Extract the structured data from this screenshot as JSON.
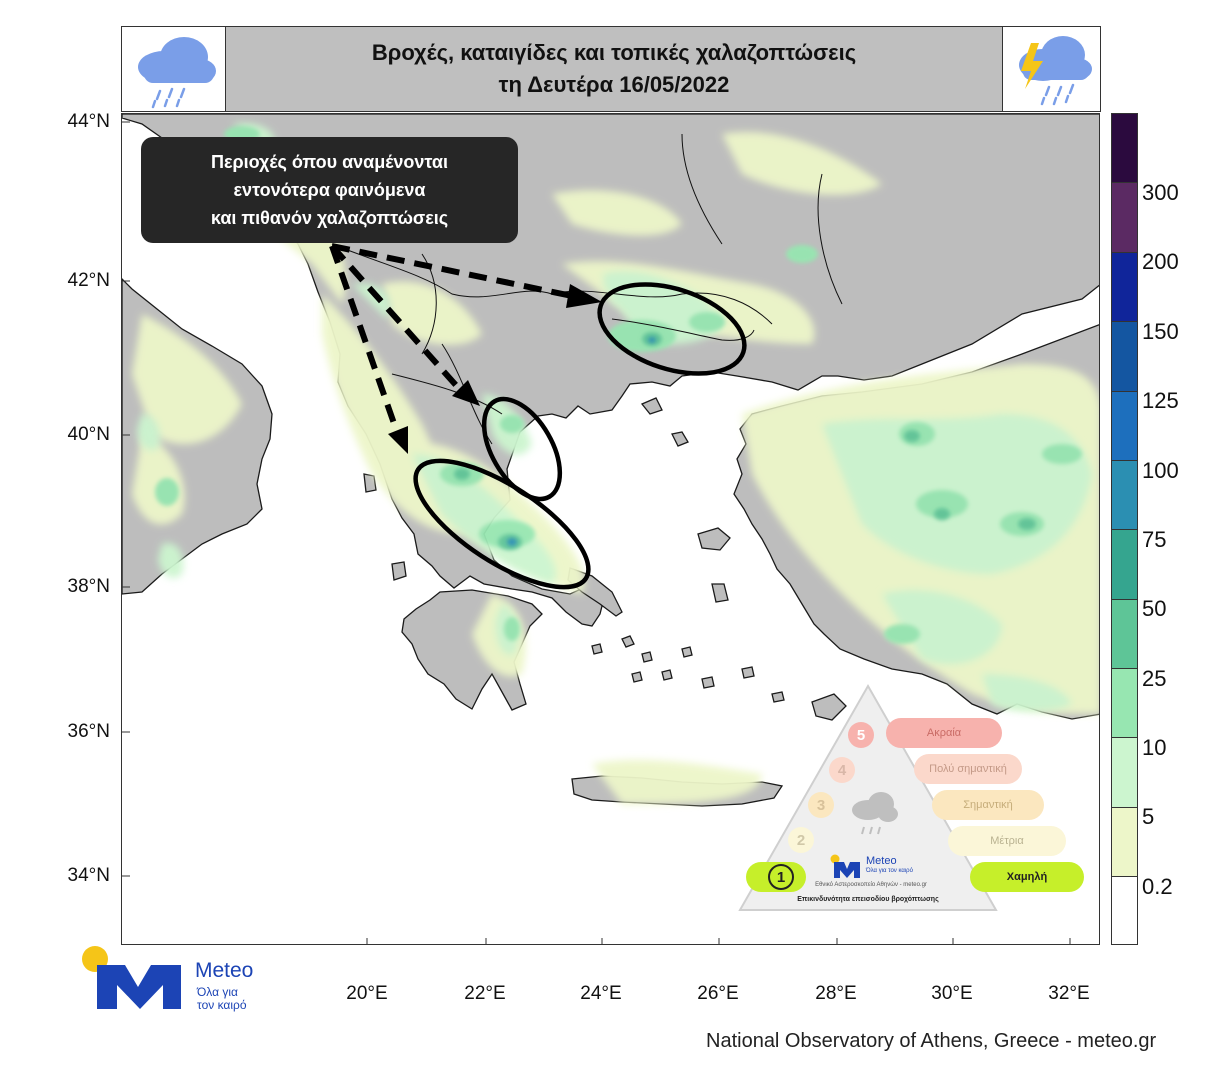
{
  "header": {
    "title_line1": "Βροχές, καταιγίδες και τοπικές χαλαζοπτώσεις",
    "title_line2": "τη Δευτέρα 16/05/2022",
    "left_icon": "rain-cloud-icon",
    "right_icon": "thunderstorm-cloud-icon"
  },
  "callout": {
    "line1": "Περιοχές όπου αναμένονται",
    "line2": "εντονότερα φαινόμενα",
    "line3": "και πιθανόν χαλαζοπτώσεις"
  },
  "map": {
    "lat_labels": [
      "44°N",
      "42°N",
      "40°N",
      "38°N",
      "36°N",
      "34°N"
    ],
    "lon_labels": [
      "20°E",
      "22°E",
      "24°E",
      "26°E",
      "28°E",
      "30°E",
      "32°E"
    ],
    "land_color": "#bdbdbd",
    "sea_color": "#ffffff"
  },
  "colorbar": {
    "levels": [
      "0.2",
      "5",
      "10",
      "25",
      "50",
      "75",
      "100",
      "125",
      "150",
      "200",
      "300"
    ],
    "colors": [
      "#ffffff",
      "#edf6c9",
      "#ccf5cf",
      "#97e6b1",
      "#5ec597",
      "#35a58f",
      "#2b8fb2",
      "#1d6fbd",
      "#1456a1",
      "#10259a",
      "#5b2a63",
      "#2b0a3e"
    ]
  },
  "risk": {
    "levels": [
      {
        "num": "1",
        "label": "Χαμηλή",
        "color": "#c6ef2a"
      },
      {
        "num": "2",
        "label": "Μέτρια",
        "color": "#fbf6d8"
      },
      {
        "num": "3",
        "label": "Σημαντική",
        "color": "#fbe7bf"
      },
      {
        "num": "4",
        "label": "Πολύ σημαντική",
        "color": "#fbd8cb"
      },
      {
        "num": "5",
        "label": "Ακραία",
        "color": "#f7b2ad"
      }
    ],
    "logo_name": "Meteo",
    "logo_tagline": "Όλα για τον καιρό",
    "institute": "Εθνικό Αστεροσκοπείο Αθηνών - meteo.gr",
    "caption": "Επικινδυνότητα επεισοδίου βροχόπτωσης"
  },
  "logo": {
    "name": "Meteo",
    "tagline_line1": "Όλα για",
    "tagline_line2": "τον καιρό"
  },
  "footer": "National Observatory of Athens, Greece - meteo.gr"
}
